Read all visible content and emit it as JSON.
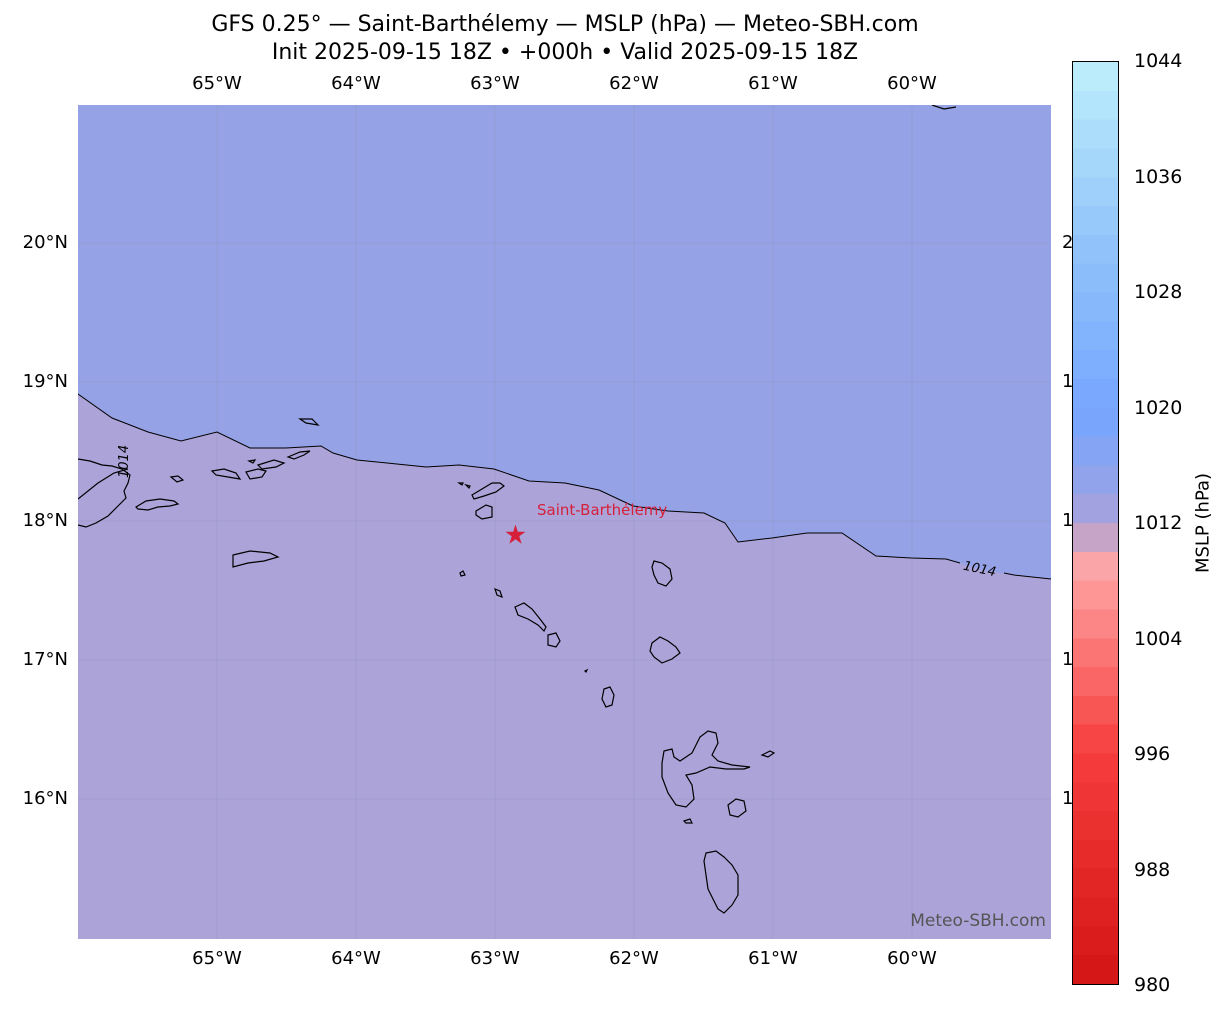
{
  "title_line1": "GFS 0.25° — Saint-Barthélemy — MSLP (hPa) — Meteo-SBH.com",
  "title_line2": "Init 2025-09-15 18Z • +000h • Valid 2025-09-15 18Z",
  "lon_ticks": [
    "65°W",
    "64°W",
    "63°W",
    "62°W",
    "61°W",
    "60°W"
  ],
  "lat_ticks": [
    "20°N",
    "19°N",
    "18°N",
    "17°N",
    "16°N"
  ],
  "lat_ticks_right": [
    "2",
    "1",
    "1",
    "1",
    "1"
  ],
  "station_label": "Saint-Barthélemy",
  "contour_label": "1014",
  "contour_label_west": "1014",
  "watermark": "Meteo-SBH.com",
  "colorbar": {
    "label": "MSLP (hPa)",
    "min": 980,
    "max": 1044,
    "tick_values": [
      "1044",
      "1036",
      "1028",
      "1020",
      "1012",
      "1004",
      "996",
      "988",
      "980"
    ]
  },
  "colors": {
    "field_high": "#96a2e6",
    "field_low": "#aca3d8",
    "station": "#d6203a"
  },
  "icons": {
    "station": "star-icon"
  }
}
